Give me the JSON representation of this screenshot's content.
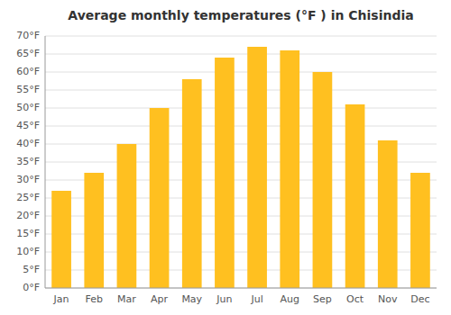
{
  "chart_data": {
    "type": "bar",
    "title": "Average monthly temperatures (°F ) in Chisindia",
    "categories": [
      "Jan",
      "Feb",
      "Mar",
      "Apr",
      "May",
      "Jun",
      "Jul",
      "Aug",
      "Sep",
      "Oct",
      "Nov",
      "Dec"
    ],
    "values": [
      27,
      32,
      40,
      50,
      58,
      64,
      67,
      66,
      60,
      51,
      41,
      32
    ],
    "color": "#FFC020",
    "ylim": [
      0,
      70
    ],
    "yticks": [
      {
        "value": 0,
        "label": "0°F"
      },
      {
        "value": 5,
        "label": "5°F"
      },
      {
        "value": 10,
        "label": "10°F"
      },
      {
        "value": 15,
        "label": "15°F"
      },
      {
        "value": 20,
        "label": "20°F"
      },
      {
        "value": 25,
        "label": "25°F"
      },
      {
        "value": 30,
        "label": "30°F"
      },
      {
        "value": 35,
        "label": "35°F"
      },
      {
        "value": 40,
        "label": "40°F"
      },
      {
        "value": 45,
        "label": "45°F"
      },
      {
        "value": 50,
        "label": "50°F"
      },
      {
        "value": 55,
        "label": "55°F"
      },
      {
        "value": 60,
        "label": "60°F"
      },
      {
        "value": 65,
        "label": "65°F"
      },
      {
        "value": 70,
        "label": "70°F"
      }
    ],
    "grid": true
  }
}
